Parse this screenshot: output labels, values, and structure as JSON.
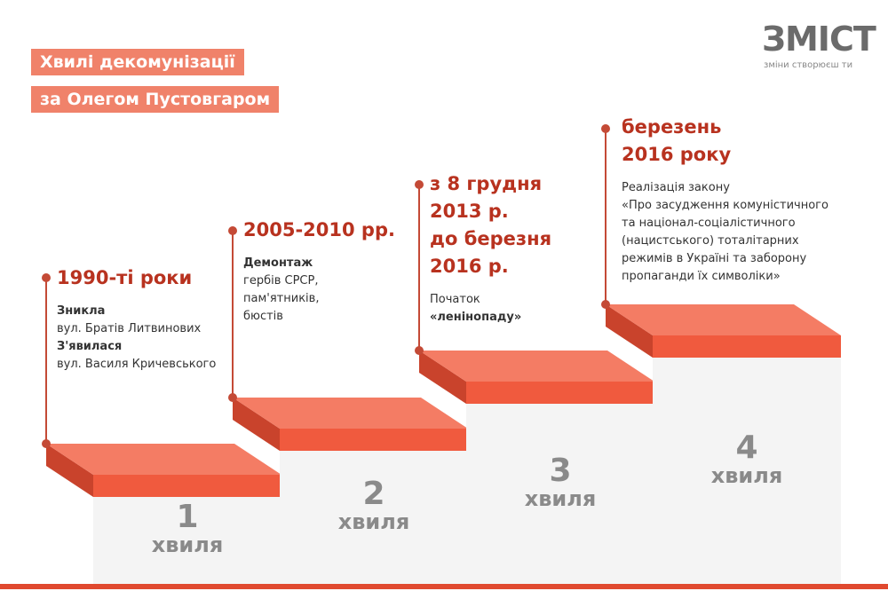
{
  "header": {
    "title_lines": [
      "Хвилі декомунізації",
      "за Олегом Пустовгаром"
    ]
  },
  "logo": {
    "name": "ЗМІСТ",
    "tagline": "зміни створюєш ти"
  },
  "waves": [
    {
      "heading": [
        "1990-ті роки"
      ],
      "lines": [
        {
          "text": "Зникла",
          "bold": true
        },
        {
          "text": "вул. Братів Литвинових",
          "bold": false
        },
        {
          "text": "З'явилася",
          "bold": true
        },
        {
          "text": "вул. Василя Кричевського",
          "bold": false
        }
      ],
      "number": "1",
      "label": "хвиля"
    },
    {
      "heading": [
        "2005-2010 рр."
      ],
      "lines": [
        {
          "text": "Демонтаж",
          "bold": true
        },
        {
          "text": "гербів СРСР,",
          "bold": false
        },
        {
          "text": "пам'ятників,",
          "bold": false
        },
        {
          "text": "бюстів",
          "bold": false
        }
      ],
      "number": "2",
      "label": "хвиля"
    },
    {
      "heading": [
        "з 8 грудня",
        "2013 р.",
        "до березня",
        "2016 р."
      ],
      "lines": [
        {
          "text": "Початок",
          "bold": false
        },
        {
          "text": "«ленінопаду»",
          "bold": true
        }
      ],
      "number": "3",
      "label": "хвиля"
    },
    {
      "heading": [
        "березень",
        "2016 року"
      ],
      "lines": [
        {
          "text": "Реалізація закону",
          "bold": false
        },
        {
          "text": "«Про засудження комуністичного",
          "bold": false
        },
        {
          "text": "та націонал-соціалістичного",
          "bold": false
        },
        {
          "text": "(нацистського) тоталітарних",
          "bold": false
        },
        {
          "text": "режимів в Україні та заборону",
          "bold": false
        },
        {
          "text": "пропаганди їх символіки»",
          "bold": false
        }
      ],
      "number": "4",
      "label": "хвиля"
    }
  ]
}
